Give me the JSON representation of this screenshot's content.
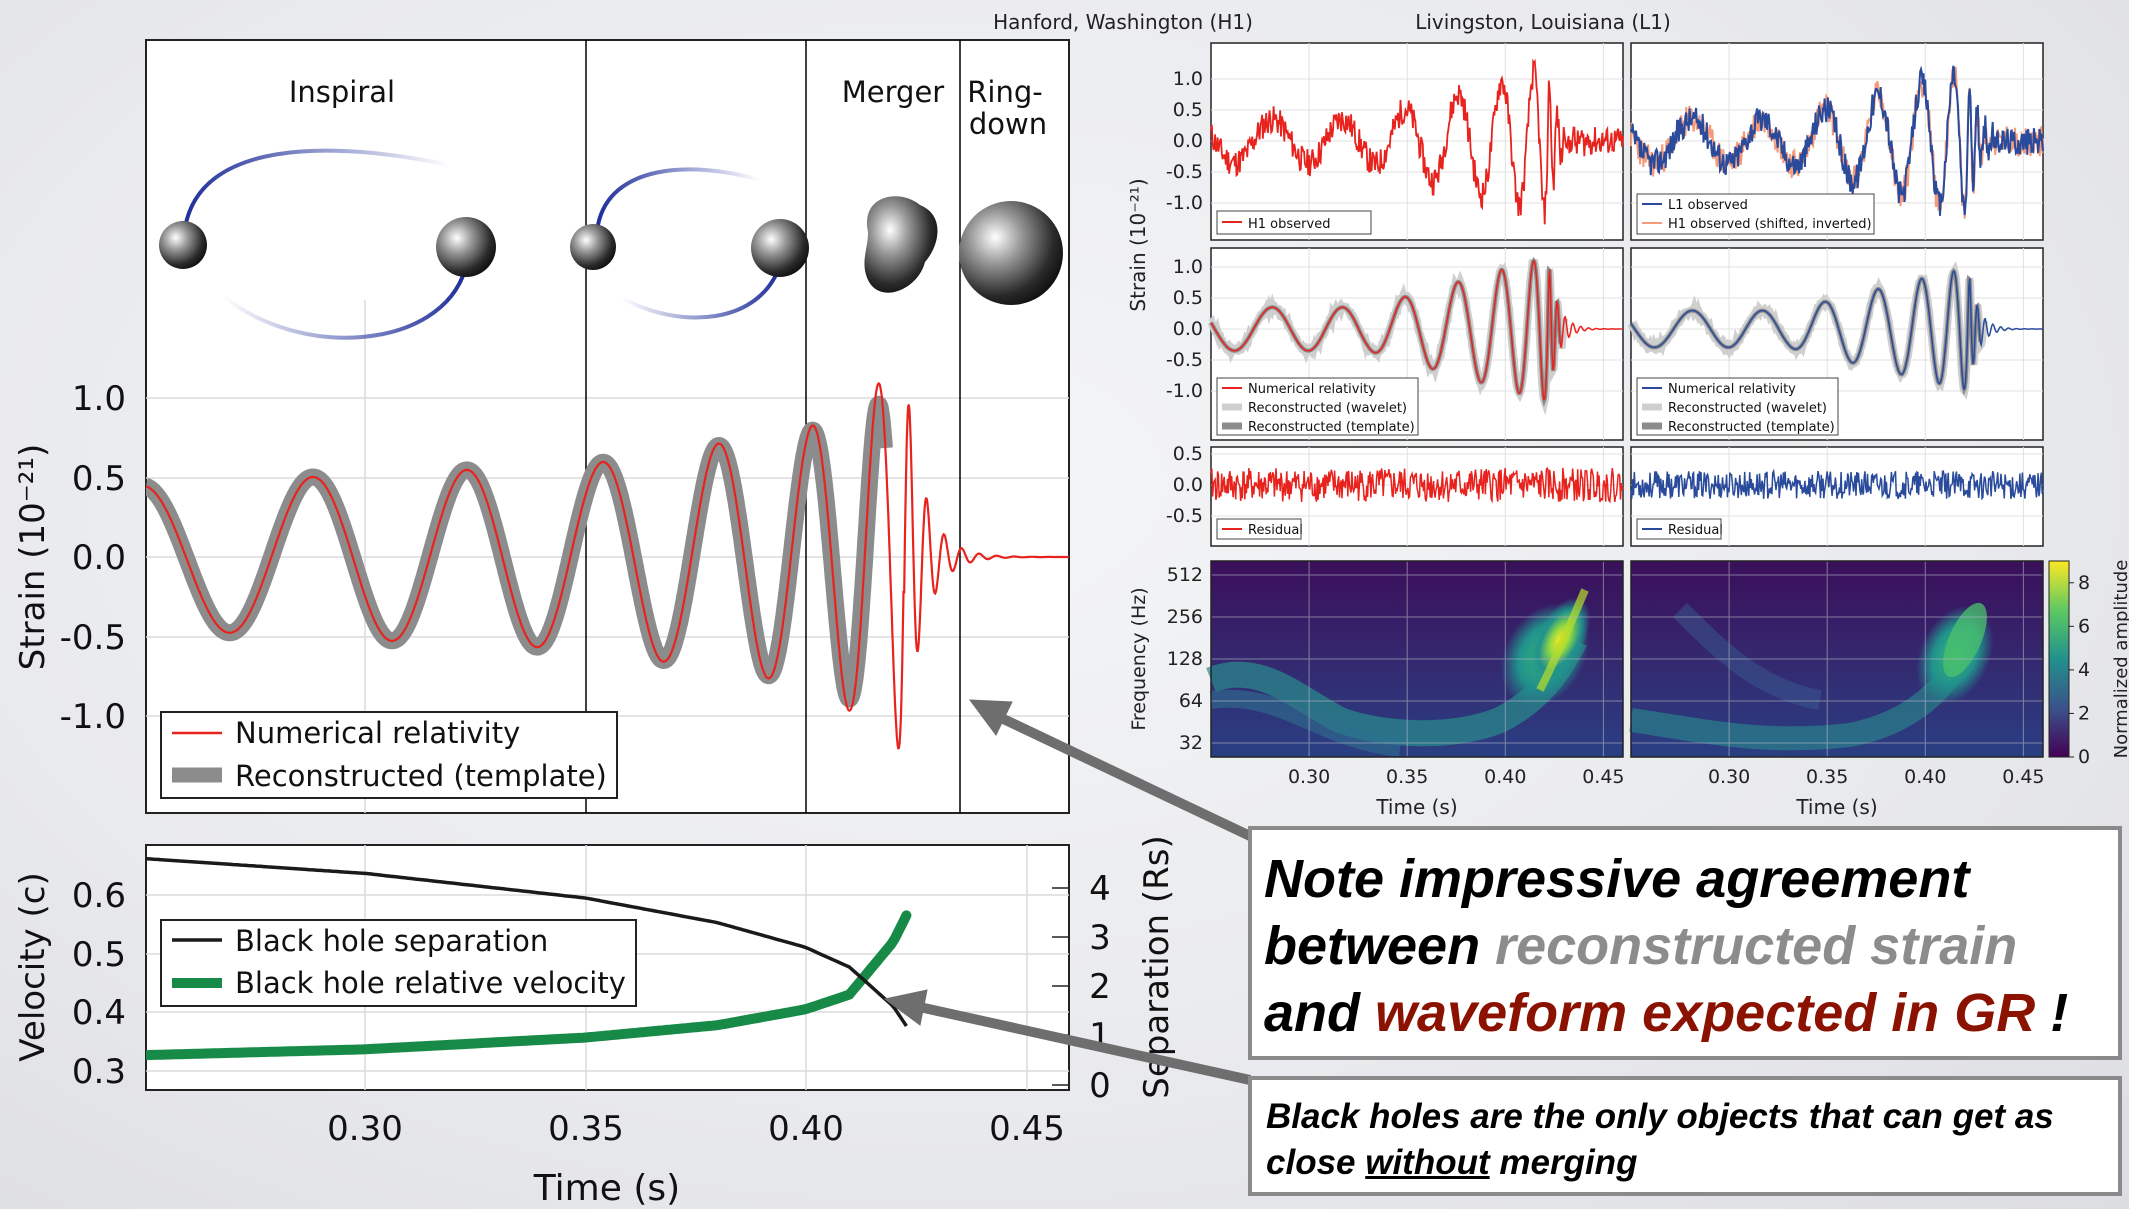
{
  "main": {
    "phase_labels": {
      "inspiral": "Inspiral",
      "merger": "Merger",
      "ringdown_1": "Ring-",
      "ringdown_2": "down"
    },
    "ylabel": "Strain (10⁻²¹)",
    "legend": {
      "nr": "Numerical relativity",
      "template": "Reconstructed (template)"
    },
    "colors": {
      "nr": "#e8231e",
      "template": "#8c8c8c",
      "separation": "#1a1a1a",
      "velocity": "#168a46"
    }
  },
  "lower": {
    "ylabel_left": "Velocity (c)",
    "ylabel_right": "Separation (Rs)",
    "xlabel": "Time (s)",
    "legend": {
      "separation": "Black hole separation",
      "velocity": "Black hole relative velocity"
    }
  },
  "detectors": {
    "h1_title": "Hanford, Washington (H1)",
    "l1_title": "Livingston, Louisiana (L1)",
    "strain_label": "Strain (10⁻²¹)",
    "freq_label": "Frequency (Hz)",
    "colorbar_label": "Normalized amplitude",
    "xlabel": "Time (s)",
    "legend": {
      "h1_observed": "H1 observed",
      "l1_observed": "L1 observed",
      "h1_shifted": "H1 observed (shifted, inverted)",
      "nr": "Numerical relativity",
      "wavelet": "Reconstructed (wavelet)",
      "template": "Reconstructed (template)",
      "residual": "Residual"
    },
    "colors": {
      "h1": "#e8231e",
      "l1": "#2a4b9b",
      "h1_shifted": "#f59a7a"
    }
  },
  "notes": {
    "n1_a": "Note impressive agreement",
    "n1_b": "between",
    "n1_c": "reconstructed strain",
    "n1_d": "and",
    "n1_e": "waveform expected in GR",
    "n1_f": "!",
    "n2_a": "Black holes are the only objects that can get as",
    "n2_b": "close",
    "n2_c": "without",
    "n2_d": "merging"
  },
  "chart_data": [
    {
      "type": "line",
      "panel": "main-strain",
      "xlim": [
        0.25,
        0.46
      ],
      "ylim": [
        -1.3,
        1.3
      ],
      "x_ticks": [
        0.3,
        0.35,
        0.4,
        0.45
      ],
      "y_ticks": [
        1.0,
        0.5,
        0.0,
        -0.5,
        -1.0
      ],
      "y_tick_labels": [
        "1.0",
        "0.5",
        "0.0",
        "-0.5",
        "-1.0"
      ],
      "series": [
        {
          "name": "Numerical relativity",
          "x": [
            0.25,
            0.3,
            0.35,
            0.4,
            0.415,
            0.423,
            0.43,
            0.44,
            0.46
          ],
          "y": [
            0.45,
            0.52,
            0.58,
            0.8,
            1.05,
            1.25,
            0.5,
            0.05,
            0.0
          ]
        },
        {
          "name": "Reconstructed (template)",
          "x": [
            0.25,
            0.3,
            0.35,
            0.4,
            0.415,
            0.423,
            0.43
          ],
          "y": [
            0.45,
            0.52,
            0.58,
            0.78,
            0.95,
            1.0,
            0.3
          ]
        }
      ]
    },
    {
      "type": "line",
      "panel": "velocity-separation",
      "xlim": [
        0.25,
        0.46
      ],
      "xlabel": "Time (s)",
      "x_ticks": [
        0.3,
        0.35,
        0.4,
        0.45
      ],
      "x_tick_labels": [
        "0.30",
        "0.35",
        "0.40",
        "0.45"
      ],
      "ylim_left": [
        0.28,
        0.69
      ],
      "y_ticks_left": [
        0.6,
        0.5,
        0.4,
        0.3
      ],
      "y_tick_labels_left": [
        "0.6",
        "0.5",
        "0.4",
        "0.3"
      ],
      "ylim_right": [
        -0.2,
        4.8
      ],
      "y_ticks_right": [
        4,
        3,
        2,
        1,
        0
      ],
      "y_tick_labels_right": [
        "4",
        "3",
        "2",
        "1",
        "0"
      ],
      "series": [
        {
          "name": "Black hole separation",
          "axis": "right",
          "x": [
            0.25,
            0.3,
            0.35,
            0.38,
            0.4,
            0.41,
            0.42,
            0.423
          ],
          "y": [
            4.6,
            4.3,
            3.8,
            3.3,
            2.8,
            2.4,
            1.6,
            1.2
          ]
        },
        {
          "name": "Black hole relative velocity",
          "axis": "left",
          "x": [
            0.25,
            0.3,
            0.35,
            0.38,
            0.4,
            0.41,
            0.42,
            0.423
          ],
          "y": [
            0.327,
            0.337,
            0.357,
            0.378,
            0.405,
            0.43,
            0.52,
            0.565
          ]
        }
      ]
    },
    {
      "type": "line",
      "panel": "detector-strain",
      "xlim": [
        0.25,
        0.46
      ],
      "ylim": [
        -1.3,
        1.3
      ],
      "y_ticks": [
        1.0,
        0.5,
        0.0,
        -0.5,
        -1.0
      ],
      "y_tick_labels": [
        "1.0",
        "0.5",
        "0.0",
        "-0.5",
        "-1.0"
      ]
    },
    {
      "type": "line",
      "panel": "detector-residual",
      "ylim": [
        -0.6,
        0.6
      ],
      "y_ticks": [
        0.5,
        0.0,
        -0.5
      ],
      "y_tick_labels": [
        "0.5",
        "0.0",
        "-0.5"
      ]
    },
    {
      "type": "heatmap",
      "panel": "spectrogram",
      "xlim": [
        0.25,
        0.46
      ],
      "x_ticks": [
        0.3,
        0.35,
        0.4,
        0.45
      ],
      "x_tick_labels": [
        "0.30",
        "0.35",
        "0.40",
        "0.45"
      ],
      "y_ticks": [
        512,
        256,
        128,
        64,
        32
      ],
      "y_tick_labels": [
        "512",
        "256",
        "128",
        "64",
        "32"
      ],
      "colorbar_ticks": [
        8,
        6,
        4,
        2,
        0
      ],
      "colorbar_tick_labels": [
        "8",
        "6",
        "4",
        "2",
        "0"
      ]
    }
  ]
}
